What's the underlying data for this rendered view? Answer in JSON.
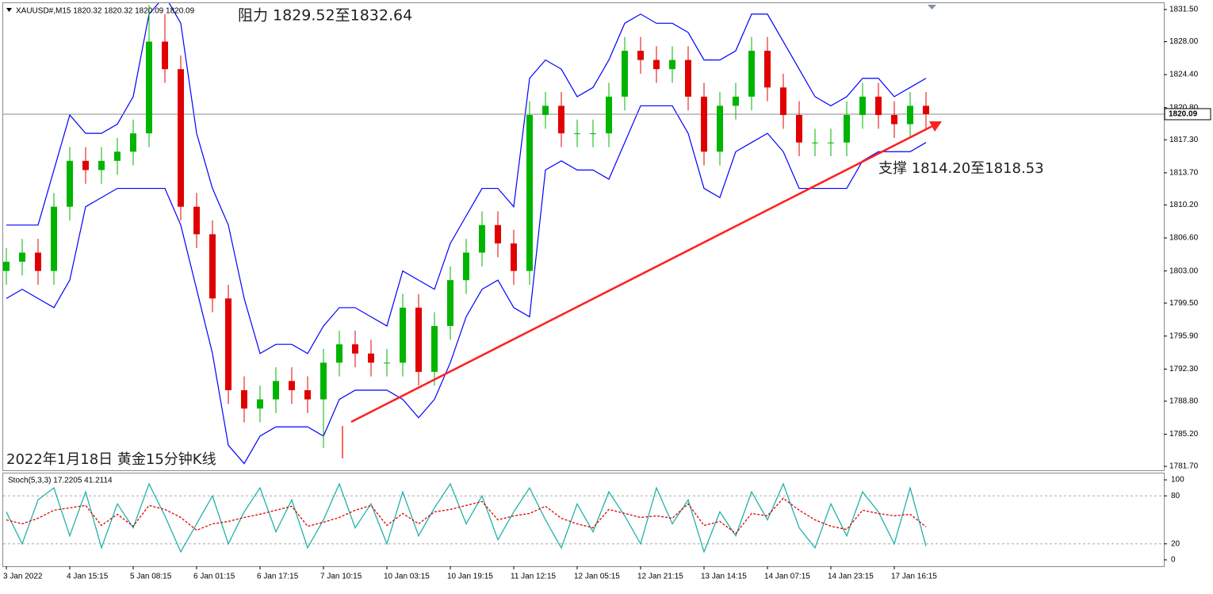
{
  "chart_data": [
    {
      "type": "candlestick",
      "title": "XAUUSD#,M15 1820.32 1820.32 1820.09 1820.09",
      "annotations": [
        "阻力 1829.52至1832.64",
        "支撑 1814.20至1818.53",
        "2022年1月18日 黄金15分钟K线"
      ],
      "categories": [
        "3 Jan 2022",
        null,
        null,
        null,
        "4 Jan 15:15",
        null,
        null,
        null,
        "5 Jan 08:15",
        null,
        null,
        null,
        "6 Jan 01:15",
        null,
        null,
        null,
        "6 Jan 17:15",
        null,
        null,
        null,
        "7 Jan 10:15",
        null,
        null,
        null,
        "10 Jan 03:15",
        null,
        null,
        null,
        "10 Jan 19:15",
        null,
        null,
        null,
        "11 Jan 12:15",
        null,
        null,
        null,
        "12 Jan 05:15",
        null,
        null,
        null,
        "12 Jan 21:15",
        null,
        null,
        null,
        "13 Jan 14:15",
        null,
        null,
        null,
        "14 Jan 07:15",
        null,
        null,
        null,
        "14 Jan 23:15",
        null,
        null,
        null,
        "17 Jan 16:15",
        null,
        null
      ],
      "open": [
        1803,
        1804,
        1805,
        1803,
        1810,
        1815,
        1814,
        1815,
        1816,
        1818,
        1828,
        1825,
        1810,
        1807,
        1800,
        1790,
        1788,
        1789,
        1791,
        1790,
        1789,
        1793,
        1795,
        1794,
        1793,
        1793,
        1799,
        1792,
        1797,
        1802,
        1805,
        1808,
        1806,
        1803,
        1820,
        1821,
        1818,
        1818,
        1818,
        1822,
        1827,
        1826,
        1825,
        1826,
        1822,
        1816,
        1821,
        1822,
        1827,
        1823,
        1820,
        1817,
        1817,
        1817,
        1820,
        1822,
        1820,
        1819,
        1821
      ],
      "high": [
        1805.5,
        1806.5,
        1806.5,
        1811.5,
        1816.5,
        1816.5,
        1816.5,
        1817.5,
        1819.5,
        1832,
        1831,
        1826.5,
        1811.5,
        1808.5,
        1801.5,
        1791.5,
        1790.5,
        1792.5,
        1792.5,
        1791.5,
        1794.5,
        1796.5,
        1796.5,
        1795.5,
        1794.5,
        1800.5,
        1800.5,
        1798.5,
        1803.5,
        1806.5,
        1809.5,
        1809.5,
        1807.5,
        1821.5,
        1822.5,
        1822.5,
        1819.5,
        1819.5,
        1823.5,
        1828.5,
        1828.5,
        1827.5,
        1827.5,
        1827.5,
        1823.5,
        1822.5,
        1823.5,
        1828.5,
        1828.5,
        1824.5,
        1821.5,
        1818.5,
        1818.5,
        1821.5,
        1823.5,
        1823.5,
        1821.5,
        1822.5,
        1822.5
      ],
      "low": [
        1801.5,
        1802.5,
        1801.5,
        1801.5,
        1808.5,
        1812.5,
        1812.5,
        1813.5,
        1814.5,
        1816.5,
        1823.5,
        1808.5,
        1805.5,
        1798.5,
        1788.5,
        1786.5,
        1786.5,
        1787.5,
        1788.5,
        1787.5,
        1783.7,
        1791.5,
        1792.5,
        1791.5,
        1791.5,
        1791.5,
        1790.5,
        1790.5,
        1795.5,
        1800.5,
        1803.5,
        1804.5,
        1801.5,
        1801.5,
        1818.5,
        1816.5,
        1816.5,
        1816.5,
        1816.5,
        1820.5,
        1824.5,
        1823.5,
        1823.5,
        1820.5,
        1814.5,
        1814.5,
        1819.5,
        1820.5,
        1821.5,
        1818.5,
        1815.5,
        1815.5,
        1815.5,
        1815.5,
        1818.5,
        1818.5,
        1817.5,
        1817.5,
        1818.5
      ],
      "close": [
        1804,
        1805,
        1803,
        1810,
        1815,
        1814,
        1815,
        1816,
        1818,
        1828,
        1825,
        1810,
        1807,
        1800,
        1790,
        1788,
        1789,
        1791,
        1790,
        1789,
        1793,
        1795,
        1794,
        1793,
        1793,
        1799,
        1792,
        1797,
        1802,
        1805,
        1808,
        1806,
        1803,
        1820,
        1821,
        1818,
        1818,
        1818,
        1822,
        1827,
        1826,
        1825,
        1826,
        1822,
        1816,
        1821,
        1822,
        1827,
        1823,
        1820,
        1817,
        1817,
        1817,
        1820,
        1822,
        1820,
        1819,
        1821,
        1820.09
      ],
      "up_color": "#00b400",
      "down_color": "#e00000",
      "bands": {
        "color": "#0000ff",
        "upper": [
          1808,
          1808,
          1808,
          1814,
          1820,
          1818,
          1818,
          1819,
          1822,
          1831,
          1833,
          1830,
          1818,
          1812,
          1808,
          1800,
          1794,
          1795,
          1795,
          1794,
          1797,
          1799,
          1799,
          1798,
          1797,
          1803,
          1802,
          1801,
          1806,
          1809,
          1812,
          1812,
          1810,
          1824,
          1826,
          1825,
          1822,
          1823,
          1826,
          1830,
          1831,
          1830,
          1830,
          1829,
          1826,
          1826,
          1827,
          1831,
          1831,
          1828,
          1825,
          1822,
          1821,
          1822,
          1824,
          1824,
          1822,
          1823,
          1824
        ],
        "lower": [
          1800,
          1801,
          1800,
          1799,
          1802,
          1810,
          1811,
          1812,
          1812,
          1812,
          1812,
          1808,
          1801,
          1794,
          1784,
          1782,
          1785,
          1786,
          1786,
          1786,
          1785,
          1789,
          1790,
          1790,
          1790,
          1789,
          1787,
          1789,
          1793,
          1798,
          1801,
          1802,
          1799,
          1798,
          1814,
          1815,
          1814,
          1814,
          1813,
          1817,
          1821,
          1821,
          1821,
          1818,
          1812,
          1811,
          1816,
          1817,
          1818,
          1816,
          1812,
          1812,
          1812,
          1812,
          1815,
          1816,
          1816,
          1816,
          1817
        ]
      },
      "current_price": 1820.09,
      "ylim": [
        1781.27,
        1832.19
      ],
      "yticks": [
        {
          "value": 1831.5,
          "label": "1831.50"
        },
        {
          "value": 1828,
          "label": "1828.00"
        },
        {
          "value": 1824.4,
          "label": "1824.40"
        },
        {
          "value": 1820.8,
          "label": "1820.80"
        },
        {
          "value": 1817.3,
          "label": "1817.30"
        },
        {
          "value": 1813.7,
          "label": "1813.70"
        },
        {
          "value": 1810.2,
          "label": "1810.20"
        },
        {
          "value": 1806.6,
          "label": "1806.60"
        },
        {
          "value": 1803,
          "label": "1803.00"
        },
        {
          "value": 1799.5,
          "label": "1799.50"
        },
        {
          "value": 1795.9,
          "label": "1795.90"
        },
        {
          "value": 1792.3,
          "label": "1792.30"
        },
        {
          "value": 1788.8,
          "label": "1788.80"
        },
        {
          "value": 1785.2,
          "label": "1785.20"
        },
        {
          "value": 1781.7,
          "label": "1781.70"
        }
      ]
    },
    {
      "type": "line",
      "title": "Stoch(5,3,3) 17.2205 41.2114",
      "series": [
        {
          "color": "#20b2aa",
          "values": [
            60,
            20,
            75,
            90,
            30,
            85,
            15,
            70,
            40,
            95,
            55,
            10,
            45,
            80,
            20,
            60,
            90,
            35,
            75,
            15,
            50,
            95,
            40,
            70,
            20,
            85,
            30,
            65,
            95,
            45,
            80,
            25,
            60,
            90,
            50,
            15,
            70,
            35,
            85,
            55,
            20,
            90,
            45,
            75,
            10,
            60,
            30,
            85,
            50,
            95,
            40,
            15,
            70,
            30,
            85,
            60,
            20,
            90,
            17.22
          ]
        },
        {
          "color": "#e00000",
          "dashed": true,
          "values": [
            50,
            45,
            52,
            62,
            65,
            68,
            43,
            57,
            42,
            68,
            63,
            53,
            37,
            45,
            48,
            53,
            57,
            62,
            67,
            42,
            47,
            53,
            62,
            68,
            43,
            58,
            45,
            60,
            63,
            68,
            73,
            50,
            55,
            58,
            67,
            52,
            45,
            40,
            63,
            58,
            53,
            55,
            52,
            70,
            43,
            48,
            33,
            58,
            55,
            77,
            62,
            50,
            42,
            38,
            62,
            58,
            55,
            57,
            41.21
          ]
        }
      ],
      "ylim": [
        -8,
        108
      ],
      "yticks": [
        0,
        20,
        80,
        100
      ],
      "levels": [
        20,
        80
      ]
    }
  ]
}
